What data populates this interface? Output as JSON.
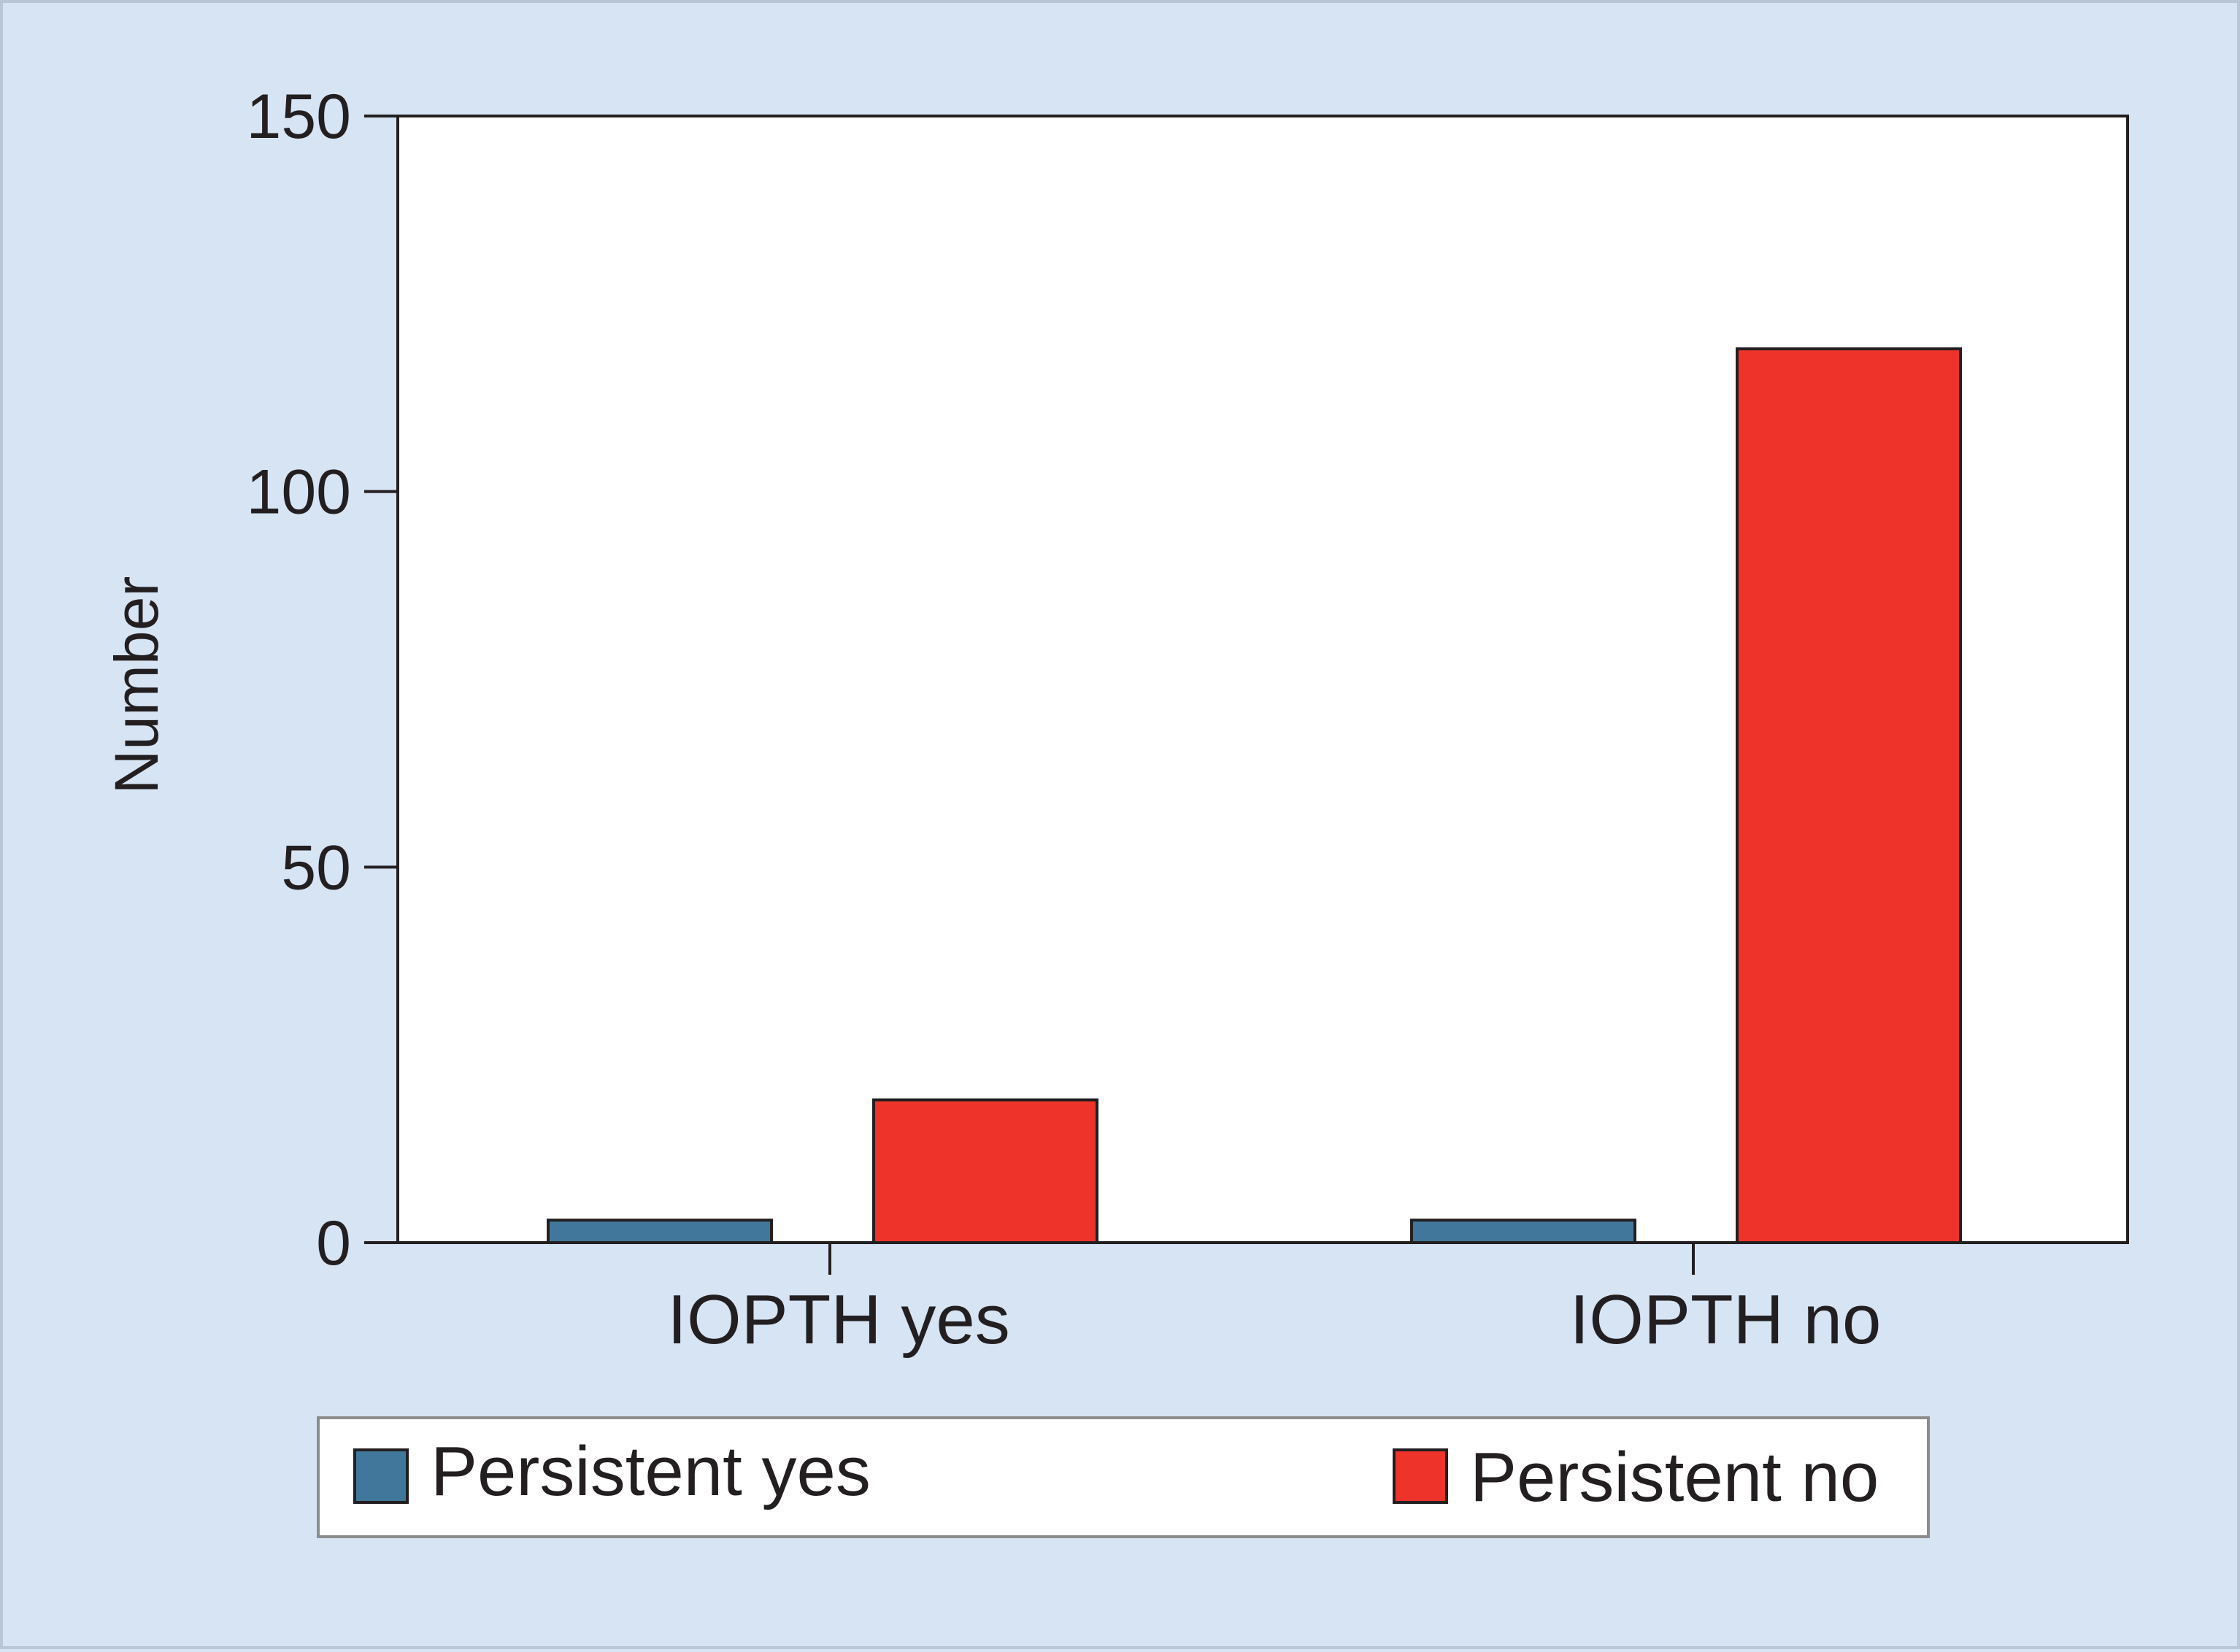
{
  "chart_data": {
    "type": "bar",
    "title": "",
    "xlabel": "",
    "ylabel": "Number",
    "ylim": [
      0,
      150
    ],
    "yticks": [
      0,
      50,
      100,
      150
    ],
    "categories": [
      "IOPTH yes",
      "IOPTH no"
    ],
    "series": [
      {
        "name": "Persistent yes",
        "color": "#41779a",
        "values": [
          3,
          3
        ]
      },
      {
        "name": "Persistent no",
        "color": "#ee332b",
        "values": [
          19,
          119
        ]
      }
    ],
    "grid": false,
    "legend_position": "bottom"
  }
}
